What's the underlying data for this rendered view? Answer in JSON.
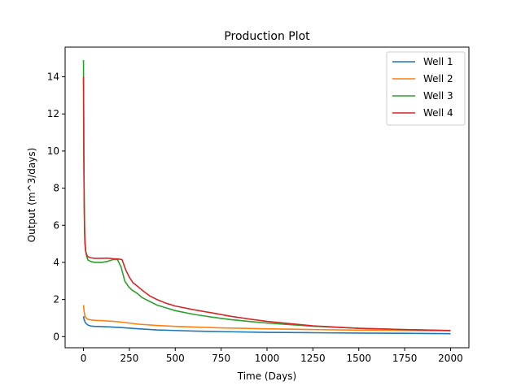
{
  "chart_data": {
    "type": "line",
    "title": "Production Plot",
    "xlabel": "Time (Days)",
    "ylabel": "Output (m^3/days)",
    "xlim": [
      -100,
      2100
    ],
    "ylim": [
      -0.6,
      15.6
    ],
    "xticks": [
      0,
      250,
      500,
      750,
      1000,
      1250,
      1500,
      1750,
      2000
    ],
    "yticks": [
      0,
      2,
      4,
      6,
      8,
      10,
      12,
      14
    ],
    "grid": false,
    "legend": "top-right",
    "series": [
      {
        "name": "Well 1",
        "color": "#1f77b4",
        "points": [
          [
            0,
            1.1
          ],
          [
            3,
            0.95
          ],
          [
            8,
            0.8
          ],
          [
            15,
            0.7
          ],
          [
            25,
            0.62
          ],
          [
            40,
            0.57
          ],
          [
            60,
            0.55
          ],
          [
            100,
            0.54
          ],
          [
            150,
            0.52
          ],
          [
            200,
            0.49
          ],
          [
            300,
            0.42
          ],
          [
            400,
            0.36
          ],
          [
            500,
            0.33
          ],
          [
            600,
            0.3
          ],
          [
            750,
            0.27
          ],
          [
            1000,
            0.23
          ],
          [
            1250,
            0.21
          ],
          [
            1500,
            0.19
          ],
          [
            1750,
            0.18
          ],
          [
            2000,
            0.16
          ]
        ]
      },
      {
        "name": "Well 2",
        "color": "#ff7f0e",
        "points": [
          [
            0,
            1.7
          ],
          [
            3,
            1.4
          ],
          [
            8,
            1.1
          ],
          [
            15,
            1.0
          ],
          [
            25,
            0.93
          ],
          [
            40,
            0.9
          ],
          [
            60,
            0.88
          ],
          [
            100,
            0.86
          ],
          [
            150,
            0.83
          ],
          [
            200,
            0.79
          ],
          [
            300,
            0.67
          ],
          [
            400,
            0.6
          ],
          [
            500,
            0.55
          ],
          [
            600,
            0.52
          ],
          [
            750,
            0.47
          ],
          [
            1000,
            0.42
          ],
          [
            1250,
            0.38
          ],
          [
            1500,
            0.35
          ],
          [
            1750,
            0.33
          ],
          [
            2000,
            0.32
          ]
        ]
      },
      {
        "name": "Well 3",
        "color": "#2ca02c",
        "points": [
          [
            0,
            14.9
          ],
          [
            2,
            10.0
          ],
          [
            4,
            7.3
          ],
          [
            6,
            5.9
          ],
          [
            8,
            5.2
          ],
          [
            12,
            4.6
          ],
          [
            18,
            4.3
          ],
          [
            25,
            4.12
          ],
          [
            40,
            4.05
          ],
          [
            60,
            4.0
          ],
          [
            100,
            4.0
          ],
          [
            130,
            4.05
          ],
          [
            160,
            4.15
          ],
          [
            185,
            4.15
          ],
          [
            205,
            3.75
          ],
          [
            225,
            3.0
          ],
          [
            245,
            2.7
          ],
          [
            265,
            2.5
          ],
          [
            290,
            2.35
          ],
          [
            320,
            2.1
          ],
          [
            360,
            1.9
          ],
          [
            400,
            1.7
          ],
          [
            450,
            1.55
          ],
          [
            500,
            1.4
          ],
          [
            600,
            1.2
          ],
          [
            700,
            1.05
          ],
          [
            800,
            0.92
          ],
          [
            900,
            0.82
          ],
          [
            1000,
            0.73
          ],
          [
            1250,
            0.56
          ],
          [
            1500,
            0.45
          ],
          [
            1750,
            0.38
          ],
          [
            2000,
            0.32
          ]
        ]
      },
      {
        "name": "Well 4",
        "color": "#d62728",
        "points": [
          [
            0,
            14.0
          ],
          [
            2,
            9.5
          ],
          [
            4,
            7.0
          ],
          [
            6,
            5.7
          ],
          [
            8,
            5.0
          ],
          [
            12,
            4.6
          ],
          [
            18,
            4.4
          ],
          [
            25,
            4.3
          ],
          [
            40,
            4.25
          ],
          [
            60,
            4.22
          ],
          [
            100,
            4.22
          ],
          [
            130,
            4.23
          ],
          [
            160,
            4.2
          ],
          [
            190,
            4.18
          ],
          [
            210,
            4.15
          ],
          [
            230,
            3.6
          ],
          [
            250,
            3.2
          ],
          [
            270,
            2.9
          ],
          [
            290,
            2.75
          ],
          [
            320,
            2.5
          ],
          [
            360,
            2.2
          ],
          [
            400,
            2.0
          ],
          [
            450,
            1.8
          ],
          [
            500,
            1.65
          ],
          [
            600,
            1.45
          ],
          [
            700,
            1.28
          ],
          [
            800,
            1.1
          ],
          [
            900,
            0.95
          ],
          [
            1000,
            0.82
          ],
          [
            1250,
            0.58
          ],
          [
            1500,
            0.45
          ],
          [
            1750,
            0.38
          ],
          [
            2000,
            0.33
          ]
        ]
      }
    ]
  }
}
